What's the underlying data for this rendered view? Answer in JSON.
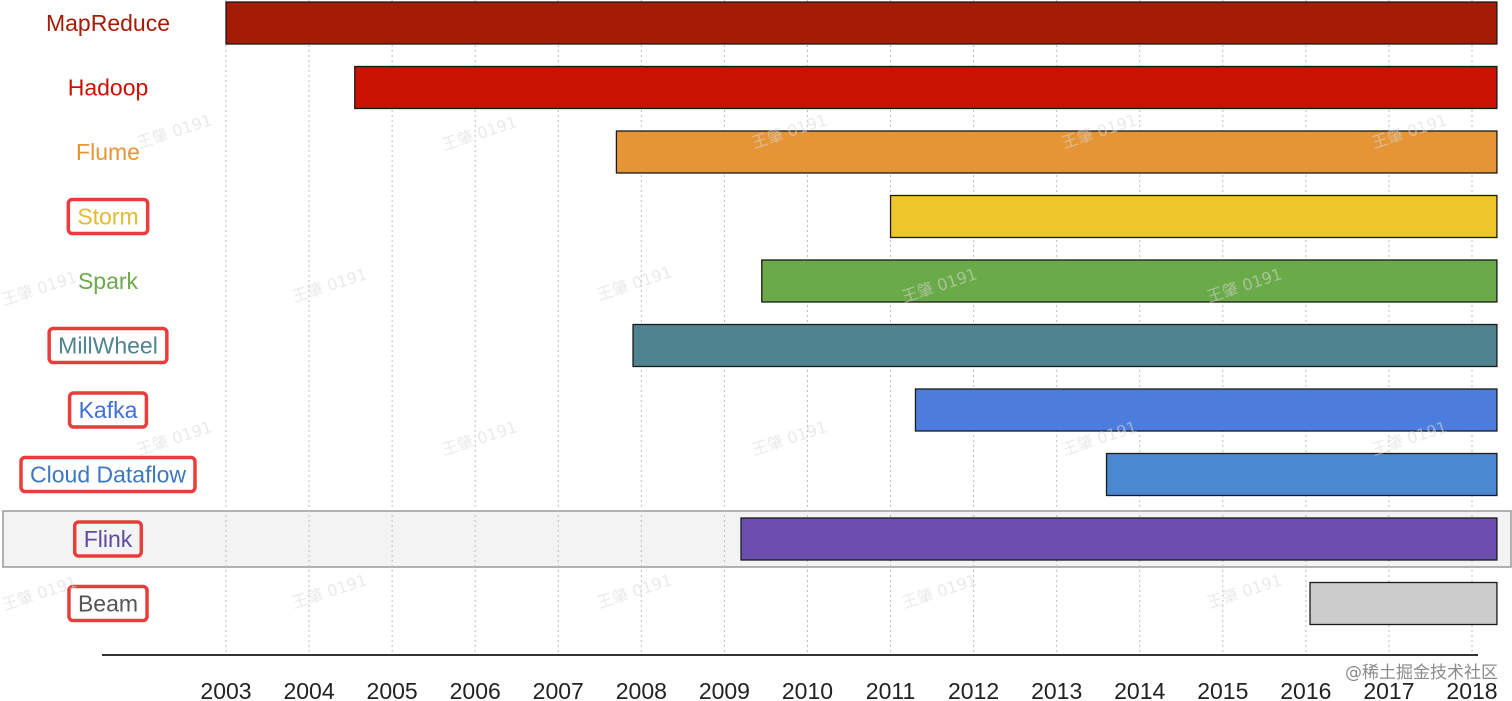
{
  "chart_data": {
    "type": "gantt",
    "x_ticks": [
      "2003",
      "2004",
      "2005",
      "2006",
      "2007",
      "2008",
      "2009",
      "2010",
      "2011",
      "2012",
      "2013",
      "2014",
      "2015",
      "2016",
      "2017",
      "2018"
    ],
    "xlim": [
      2003.0,
      2018.0
    ],
    "grid": true,
    "series": [
      {
        "name": "MapReduce",
        "start": 2003.0,
        "end": 2018.3,
        "color": "#a41c06",
        "text_color": "#a41c06",
        "boxed": false
      },
      {
        "name": "Hadoop",
        "start": 2004.55,
        "end": 2018.3,
        "color": "#c91201",
        "text_color": "#c91201",
        "boxed": false
      },
      {
        "name": "Flume",
        "start": 2007.7,
        "end": 2018.3,
        "color": "#e69536",
        "text_color": "#e69536",
        "boxed": false
      },
      {
        "name": "Storm",
        "start": 2011.0,
        "end": 2018.3,
        "color": "#eec52a",
        "text_color": "#e3bb2f",
        "boxed": true
      },
      {
        "name": "Spark",
        "start": 2009.45,
        "end": 2018.3,
        "color": "#6aaa48",
        "text_color": "#6aaa48",
        "boxed": false
      },
      {
        "name": "MillWheel",
        "start": 2007.9,
        "end": 2018.3,
        "color": "#4f8390",
        "text_color": "#4f8390",
        "boxed": true
      },
      {
        "name": "Kafka",
        "start": 2011.3,
        "end": 2018.3,
        "color": "#4c7ddc",
        "text_color": "#3f6fd1",
        "boxed": true
      },
      {
        "name": "Cloud Dataflow",
        "start": 2013.6,
        "end": 2018.3,
        "color": "#4b88d2",
        "text_color": "#3c78c2",
        "boxed": true
      },
      {
        "name": "Flink",
        "start": 2009.2,
        "end": 2018.3,
        "color": "#6b4ead",
        "text_color": "#5e49a3",
        "boxed": true,
        "highlighted": true
      },
      {
        "name": "Beam",
        "start": 2016.05,
        "end": 2018.3,
        "color": "#cccccc",
        "text_color": "#555555",
        "boxed": true
      }
    ]
  },
  "watermark": {
    "text": "王肇 0191"
  },
  "credit": {
    "text": "@稀土掘金技术社区"
  },
  "colors": {
    "highlight_box": "#ea3c3c",
    "grid": "#bdbdbd",
    "axis": "#333333"
  }
}
